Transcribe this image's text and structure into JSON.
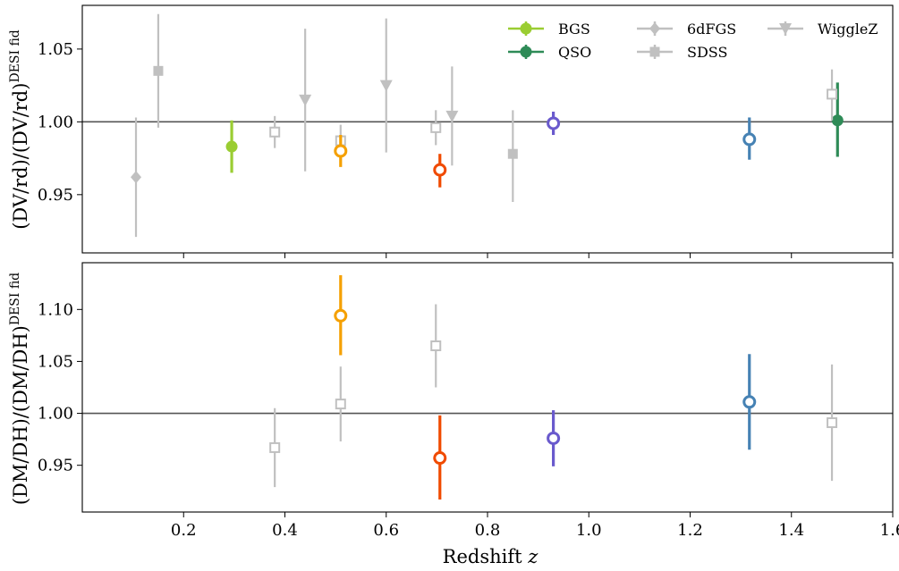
{
  "chart_data": [
    {
      "type": "scatter",
      "panel": "top",
      "ylabel": "(D_V/r_d)/(D_V/r_d)^{DESI fid}",
      "ylabel_parts": {
        "main": "(DV/rd)/(DV/rd)",
        "sup": "DESI fid"
      },
      "xlim": [
        0.0,
        1.6
      ],
      "ylim": [
        0.91,
        1.08
      ],
      "yticks": [
        "0.95",
        "1.00",
        "1.05"
      ],
      "reference_line": 1.0,
      "legend": [
        "BGS",
        "QSO",
        "6dFGS",
        "SDSS",
        "WiggleZ"
      ],
      "series": [
        {
          "name": "BGS",
          "color": "#9ACD32",
          "filled": true,
          "marker": "circle",
          "points": [
            {
              "x": 0.295,
              "y": 0.983,
              "lo": 0.965,
              "hi": 1.001
            }
          ]
        },
        {
          "name": "QSO",
          "color": "#2E8B57",
          "filled": true,
          "marker": "circle",
          "points": [
            {
              "x": 1.491,
              "y": 1.001,
              "lo": 0.976,
              "hi": 1.027
            }
          ]
        },
        {
          "name": "6dFGS",
          "color": "#C0C0C0",
          "filled": true,
          "marker": "diamond",
          "points": [
            {
              "x": 0.106,
              "y": 0.962,
              "lo": 0.921,
              "hi": 1.003
            }
          ]
        },
        {
          "name": "SDSS",
          "color": "#C0C0C0",
          "filled": true,
          "marker": "square",
          "points": [
            {
              "x": 0.15,
              "y": 1.035,
              "lo": 0.996,
              "hi": 1.074
            },
            {
              "x": 0.85,
              "y": 0.978,
              "lo": 0.945,
              "hi": 1.008
            }
          ]
        },
        {
          "name": "SDSS",
          "color": "#C0C0C0",
          "filled": false,
          "marker": "square",
          "points": [
            {
              "x": 0.38,
              "y": 0.993,
              "lo": 0.982,
              "hi": 1.004
            },
            {
              "x": 0.51,
              "y": 0.987,
              "lo": 0.976,
              "hi": 0.998
            },
            {
              "x": 0.698,
              "y": 0.996,
              "lo": 0.984,
              "hi": 1.008
            },
            {
              "x": 1.48,
              "y": 1.019,
              "lo": 1.001,
              "hi": 1.036
            }
          ]
        },
        {
          "name": "WiggleZ",
          "color": "#C0C0C0",
          "filled": true,
          "marker": "triangle-down",
          "points": [
            {
              "x": 0.44,
              "y": 1.015,
              "lo": 0.966,
              "hi": 1.064
            },
            {
              "x": 0.6,
              "y": 1.025,
              "lo": 0.979,
              "hi": 1.071
            },
            {
              "x": 0.73,
              "y": 1.004,
              "lo": 0.97,
              "hi": 1.038
            }
          ]
        },
        {
          "name": "",
          "color": "#F5A000",
          "filled": false,
          "marker": "circle",
          "points": [
            {
              "x": 0.51,
              "y": 0.98,
              "lo": 0.969,
              "hi": 0.991
            }
          ]
        },
        {
          "name": "",
          "color": "#F04A00",
          "filled": false,
          "marker": "circle",
          "points": [
            {
              "x": 0.706,
              "y": 0.967,
              "lo": 0.955,
              "hi": 0.978
            }
          ]
        },
        {
          "name": "",
          "color": "#6A5ACD",
          "filled": false,
          "marker": "circle",
          "points": [
            {
              "x": 0.93,
              "y": 0.999,
              "lo": 0.991,
              "hi": 1.007
            }
          ]
        },
        {
          "name": "",
          "color": "#4682B4",
          "filled": false,
          "marker": "circle",
          "points": [
            {
              "x": 1.317,
              "y": 0.988,
              "lo": 0.974,
              "hi": 1.003
            }
          ]
        }
      ]
    },
    {
      "type": "scatter",
      "panel": "bottom",
      "xlabel": "Redshift z",
      "xlabel_parts": {
        "main": "Redshift ",
        "var": "z"
      },
      "ylabel": "(D_M/D_H)/(D_M/D_H)^{DESI fid}",
      "ylabel_parts": {
        "main": "(DM/DH)/(DM/DH)",
        "sup": "DESI fid"
      },
      "xlim": [
        0.0,
        1.6
      ],
      "ylim": [
        0.905,
        1.145
      ],
      "xticks": [
        "0.2",
        "0.4",
        "0.6",
        "0.8",
        "1.0",
        "1.2",
        "1.4",
        "1.6"
      ],
      "yticks": [
        "0.95",
        "1.00",
        "1.05",
        "1.10"
      ],
      "reference_line": 1.0,
      "series": [
        {
          "name": "",
          "color": "#C0C0C0",
          "filled": false,
          "marker": "square",
          "points": [
            {
              "x": 0.38,
              "y": 0.967,
              "lo": 0.929,
              "hi": 1.005
            },
            {
              "x": 0.51,
              "y": 1.009,
              "lo": 0.973,
              "hi": 1.045
            },
            {
              "x": 0.698,
              "y": 1.065,
              "lo": 1.025,
              "hi": 1.105
            },
            {
              "x": 1.48,
              "y": 0.991,
              "lo": 0.935,
              "hi": 1.047
            }
          ]
        },
        {
          "name": "",
          "color": "#F5A000",
          "filled": false,
          "marker": "circle",
          "points": [
            {
              "x": 0.51,
              "y": 1.094,
              "lo": 1.056,
              "hi": 1.133
            }
          ]
        },
        {
          "name": "",
          "color": "#F04A00",
          "filled": false,
          "marker": "circle",
          "points": [
            {
              "x": 0.706,
              "y": 0.957,
              "lo": 0.917,
              "hi": 0.998
            }
          ]
        },
        {
          "name": "",
          "color": "#6A5ACD",
          "filled": false,
          "marker": "circle",
          "points": [
            {
              "x": 0.93,
              "y": 0.976,
              "lo": 0.949,
              "hi": 1.003
            }
          ]
        },
        {
          "name": "",
          "color": "#4682B4",
          "filled": false,
          "marker": "circle",
          "points": [
            {
              "x": 1.317,
              "y": 1.011,
              "lo": 0.965,
              "hi": 1.057
            }
          ]
        }
      ]
    }
  ]
}
